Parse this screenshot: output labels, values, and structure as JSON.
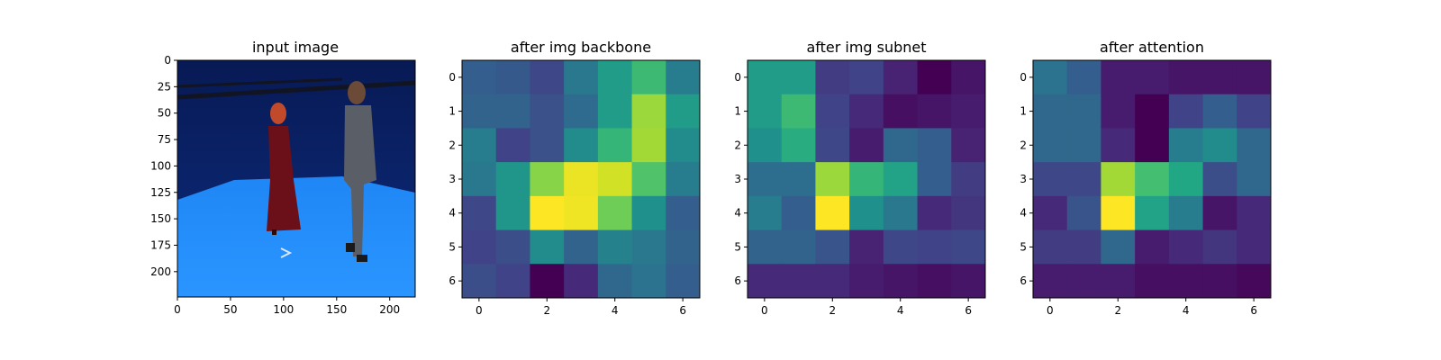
{
  "figure": {
    "background": "#ffffff"
  },
  "colormap": "viridis",
  "chart_data": [
    {
      "type": "image",
      "title": "input image",
      "image_description": "Two people standing on a bright blue floor in a blue motion-capture studio with overhead camera rigging.",
      "xlim": [
        0,
        224
      ],
      "ylim": [
        224,
        0
      ],
      "x_ticks": [
        0,
        50,
        100,
        150,
        200
      ],
      "y_ticks": [
        0,
        25,
        50,
        75,
        100,
        125,
        150,
        175,
        200
      ],
      "colors": {
        "wall": "#0c2b7c",
        "floor": "#1f87f5",
        "person_left_dress": "#6b1018",
        "person_left_hair": "#c04a2a",
        "person_right_jacket": "#5a5e66",
        "person_right_hair": "#6b4a38",
        "rig": "#111422"
      }
    },
    {
      "type": "heatmap",
      "title": "after img backbone",
      "x": [
        0,
        1,
        2,
        3,
        4,
        5,
        6
      ],
      "y": [
        0,
        1,
        2,
        3,
        4,
        5,
        6
      ],
      "x_ticks": [
        0,
        2,
        4,
        6
      ],
      "y_ticks": [
        0,
        1,
        2,
        3,
        4,
        5,
        6
      ],
      "values": [
        [
          0.3,
          0.28,
          0.22,
          0.4,
          0.55,
          0.68,
          0.42
        ],
        [
          0.32,
          0.32,
          0.25,
          0.35,
          0.55,
          0.85,
          0.55
        ],
        [
          0.42,
          0.2,
          0.25,
          0.48,
          0.66,
          0.86,
          0.48
        ],
        [
          0.4,
          0.52,
          0.82,
          0.97,
          0.93,
          0.72,
          0.42
        ],
        [
          0.22,
          0.52,
          1.0,
          0.98,
          0.78,
          0.5,
          0.3
        ],
        [
          0.2,
          0.24,
          0.48,
          0.32,
          0.44,
          0.4,
          0.32
        ],
        [
          0.24,
          0.2,
          0.0,
          0.12,
          0.34,
          0.38,
          0.3
        ]
      ]
    },
    {
      "type": "heatmap",
      "title": "after img subnet",
      "x": [
        0,
        1,
        2,
        3,
        4,
        5,
        6
      ],
      "y": [
        0,
        1,
        2,
        3,
        4,
        5,
        6
      ],
      "x_ticks": [
        0,
        2,
        4,
        6
      ],
      "y_ticks": [
        0,
        1,
        2,
        3,
        4,
        5,
        6
      ],
      "values": [
        [
          0.55,
          0.55,
          0.18,
          0.2,
          0.1,
          0.0,
          0.06
        ],
        [
          0.55,
          0.68,
          0.2,
          0.12,
          0.04,
          0.06,
          0.08
        ],
        [
          0.5,
          0.62,
          0.22,
          0.08,
          0.34,
          0.3,
          0.1
        ],
        [
          0.36,
          0.36,
          0.85,
          0.66,
          0.58,
          0.3,
          0.18
        ],
        [
          0.42,
          0.3,
          1.0,
          0.5,
          0.4,
          0.12,
          0.16
        ],
        [
          0.32,
          0.32,
          0.26,
          0.1,
          0.22,
          0.2,
          0.22
        ],
        [
          0.12,
          0.12,
          0.12,
          0.08,
          0.06,
          0.04,
          0.06
        ]
      ]
    },
    {
      "type": "heatmap",
      "title": "after attention",
      "x": [
        0,
        1,
        2,
        3,
        4,
        5,
        6
      ],
      "y": [
        0,
        1,
        2,
        3,
        4,
        5,
        6
      ],
      "x_ticks": [
        0,
        2,
        4,
        6
      ],
      "y_ticks": [
        0,
        1,
        2,
        3,
        4,
        5,
        6
      ],
      "values": [
        [
          0.38,
          0.3,
          0.08,
          0.08,
          0.06,
          0.06,
          0.06
        ],
        [
          0.34,
          0.34,
          0.08,
          0.0,
          0.2,
          0.3,
          0.2
        ],
        [
          0.34,
          0.34,
          0.12,
          0.0,
          0.42,
          0.48,
          0.34
        ],
        [
          0.22,
          0.22,
          0.86,
          0.7,
          0.6,
          0.24,
          0.34
        ],
        [
          0.12,
          0.26,
          1.0,
          0.58,
          0.42,
          0.06,
          0.12
        ],
        [
          0.18,
          0.18,
          0.34,
          0.08,
          0.12,
          0.16,
          0.12
        ],
        [
          0.08,
          0.08,
          0.08,
          0.04,
          0.04,
          0.04,
          0.02
        ]
      ]
    }
  ]
}
